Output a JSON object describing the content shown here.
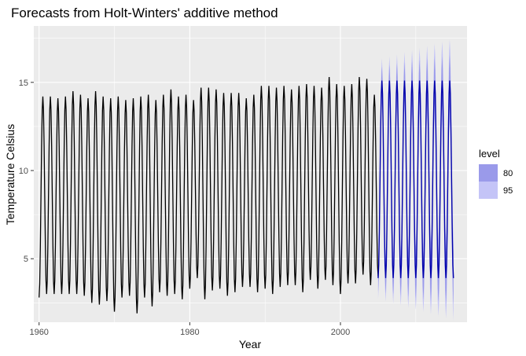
{
  "chart_data": {
    "type": "line",
    "title": "Forecasts from Holt-Winters' additive method",
    "xlabel": "Year",
    "ylabel": "Temperature Celsius",
    "xlim": [
      1959.3,
      2016.8
    ],
    "ylim": [
      1.4,
      18.2
    ],
    "x_ticks": [
      1960,
      1980,
      2000
    ],
    "x_tick_labels": [
      "1960",
      "1980",
      "2000"
    ],
    "y_ticks": [
      5,
      10,
      15
    ],
    "y_tick_labels": [
      "5",
      "10",
      "15"
    ],
    "grid": true,
    "legend_position": "right",
    "legend": {
      "title": "level",
      "items": [
        {
          "label": "80",
          "color": "#9a9aea"
        },
        {
          "label": "95",
          "color": "#c4c4f7"
        }
      ]
    },
    "colors": {
      "panel": "#ebebeb",
      "grid_major": "#ffffff",
      "observed": "#000000",
      "forecast": "#0000aa",
      "band80": "#9a9aea",
      "band95": "#c4c4f7"
    },
    "series": [
      {
        "role": "observed",
        "start_year": 1960,
        "end_year": 2005,
        "annual_peaks": [
          14.2,
          14.2,
          14.1,
          14.2,
          14.5,
          14.3,
          14.1,
          14.5,
          14.2,
          14.1,
          14.2,
          14.0,
          14.1,
          14.2,
          14.3,
          14.0,
          14.3,
          14.6,
          14.2,
          14.3,
          14.0,
          14.7,
          14.7,
          14.6,
          14.4,
          14.4,
          14.4,
          14.1,
          14.3,
          14.8,
          14.8,
          14.7,
          14.8,
          14.6,
          14.8,
          14.9,
          14.8,
          14.7,
          15.3,
          14.9,
          14.8,
          14.9,
          15.3,
          15.2,
          14.3
        ],
        "annual_troughs": [
          2.8,
          3.0,
          3.0,
          3.0,
          3.0,
          3.0,
          2.9,
          2.5,
          2.4,
          2.6,
          2.0,
          2.8,
          2.9,
          1.9,
          2.8,
          2.3,
          3.1,
          2.9,
          3.0,
          2.7,
          3.3,
          3.9,
          2.7,
          3.2,
          3.3,
          2.9,
          3.1,
          3.4,
          3.4,
          3.1,
          3.3,
          3.0,
          3.4,
          3.5,
          3.5,
          3.1,
          3.8,
          3.3,
          3.8,
          3.5,
          3.0,
          3.6,
          3.6,
          4.1,
          3.5,
          4.0
        ]
      },
      {
        "role": "forecast",
        "start_year": 2005,
        "end_year": 2015,
        "peak": 15.1,
        "trough": 3.9,
        "interval_80_halfwidth_start": 0.8,
        "interval_80_halfwidth_end": 1.5,
        "interval_95_halfwidth_start": 1.2,
        "interval_95_halfwidth_end": 2.4
      }
    ]
  }
}
